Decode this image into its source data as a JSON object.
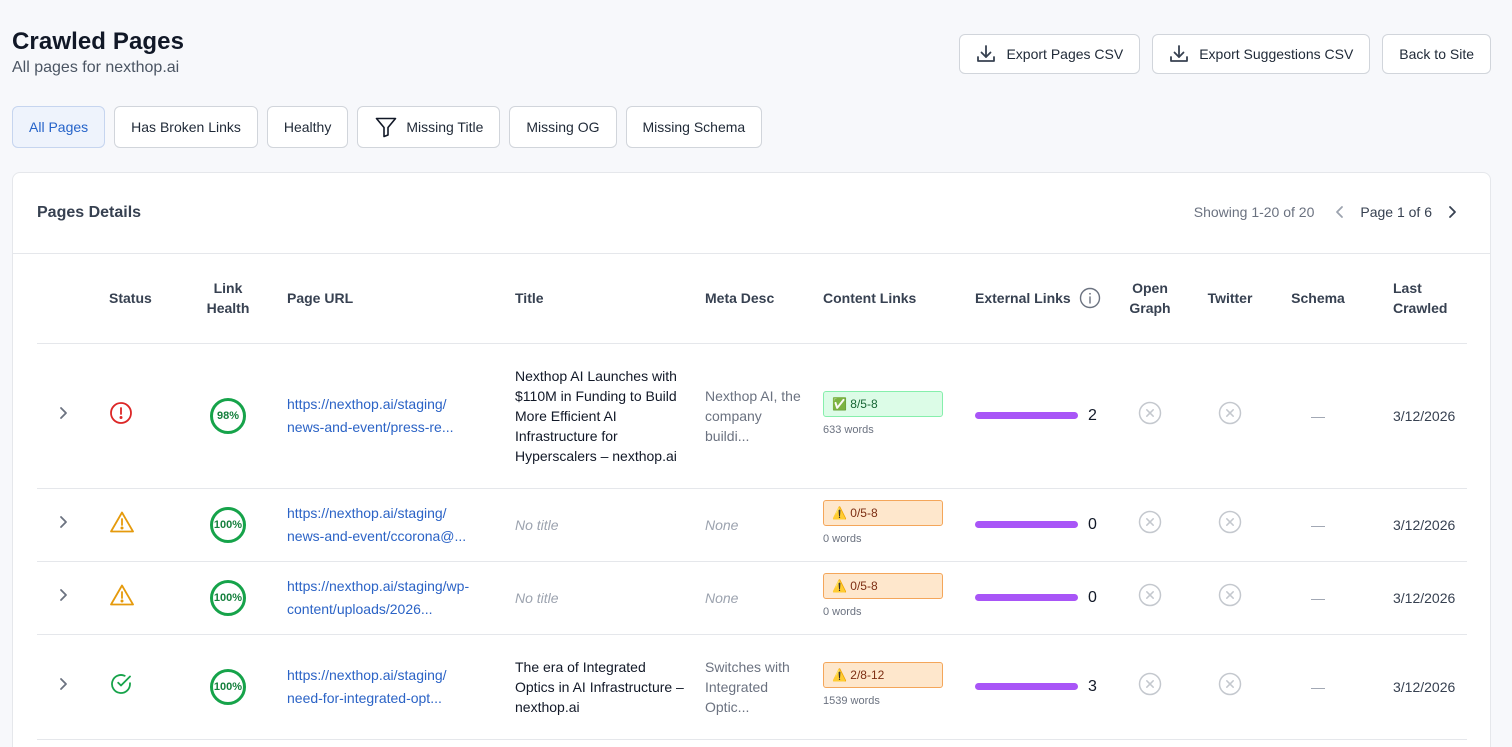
{
  "header": {
    "title": "Crawled Pages",
    "subtitle": "All pages for nexthop.ai"
  },
  "actions": {
    "export_pages": "Export Pages CSV",
    "export_suggestions": "Export Suggestions CSV",
    "back": "Back to Site"
  },
  "filters": [
    {
      "label": "All Pages",
      "active": true
    },
    {
      "label": "Has Broken Links",
      "active": false
    },
    {
      "label": "Healthy",
      "active": false
    },
    {
      "label": "Missing Title",
      "active": false,
      "icon": "filter-icon"
    },
    {
      "label": "Missing OG",
      "active": false
    },
    {
      "label": "Missing Schema",
      "active": false
    }
  ],
  "card": {
    "title": "Pages Details",
    "showing": "Showing 1-20 of 20",
    "page": "Page 1 of 6"
  },
  "columns": {
    "status": "Status",
    "link_health_1": "Link",
    "link_health_2": "Health",
    "url": "Page URL",
    "title": "Title",
    "meta": "Meta Desc",
    "content_links": "Content Links",
    "external_links": "External Links",
    "og_1": "Open",
    "og_2": "Graph",
    "twitter": "Twitter",
    "schema": "Schema",
    "last_crawled_1": "Last",
    "last_crawled_2": "Crawled"
  },
  "rows": [
    {
      "status": "error",
      "health": "98%",
      "url_1": "https://nexthop.ai/staging/",
      "url_2": "news-and-event/press-re...",
      "title": "Nexthop AI Launches with $110M in Funding to Build More Efficient AI Infrastructure for Hyperscalers – nexthop.ai",
      "meta": "Nexthop AI, the company buildi...",
      "content_badge": "✅ 8/5-8",
      "content_kind": "ok",
      "words": "633 words",
      "external": "2",
      "schema": "—",
      "date": "3/12/2026"
    },
    {
      "status": "warning",
      "health": "100%",
      "url_1": "https://nexthop.ai/staging/",
      "url_2": "news-and-event/ccorona@...",
      "title": "No title",
      "meta": "None",
      "content_badge": "⚠️ 0/5-8",
      "content_kind": "warn",
      "words": "0 words",
      "external": "0",
      "schema": "—",
      "date": "3/12/2026"
    },
    {
      "status": "warning",
      "health": "100%",
      "url_1": "https://nexthop.ai/staging/wp-",
      "url_2": "content/uploads/2026...",
      "title": "No title",
      "meta": "None",
      "content_badge": "⚠️ 0/5-8",
      "content_kind": "warn",
      "words": "0 words",
      "external": "0",
      "schema": "—",
      "date": "3/12/2026"
    },
    {
      "status": "ok",
      "health": "100%",
      "url_1": "https://nexthop.ai/staging/",
      "url_2": "need-for-integrated-opt...",
      "title": "The era of Integrated Optics in AI Infrastructure – nexthop.ai",
      "meta": "Switches with Integrated Optic...",
      "content_badge": "⚠️ 2/8-12",
      "content_kind": "warn",
      "words": "1539 words",
      "external": "3",
      "schema": "—",
      "date": "3/12/2026"
    }
  ]
}
